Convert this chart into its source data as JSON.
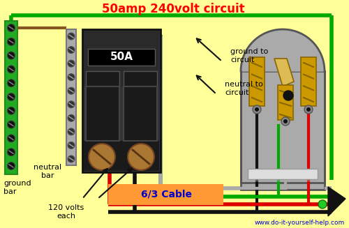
{
  "title": "50amp 240volt circuit",
  "title_color": "#ff0000",
  "bg_color": "#ffff99",
  "website": "www.do-it-yourself-help.com",
  "website_color": "#0000cc",
  "cable_label": "6/3 Cable",
  "cable_label_color": "#0000cc",
  "cable_box_color": "#ff9933",
  "breaker_label": "50A",
  "green_color": "#00aa00",
  "red_color": "#dd0000",
  "black_color": "#111111",
  "gray_color": "#aaaaaa",
  "ground_bar_color": "#22aa22",
  "neutral_bar_color": "#aaaaaa",
  "breaker_color": "#333333",
  "outlet_color": "#aaaaaa",
  "prong_color": "#cc9900",
  "prong_light": "#ddbb55",
  "brown_color": "#aa7733",
  "labels": {
    "ground_bar": "ground\nbar",
    "neutral_bar": "neutral\nbar",
    "ground_to_circuit": "ground to\ncircuit",
    "neutral_to_circuit": "neutral to\ncircuit",
    "volts": "120 volts\neach"
  }
}
